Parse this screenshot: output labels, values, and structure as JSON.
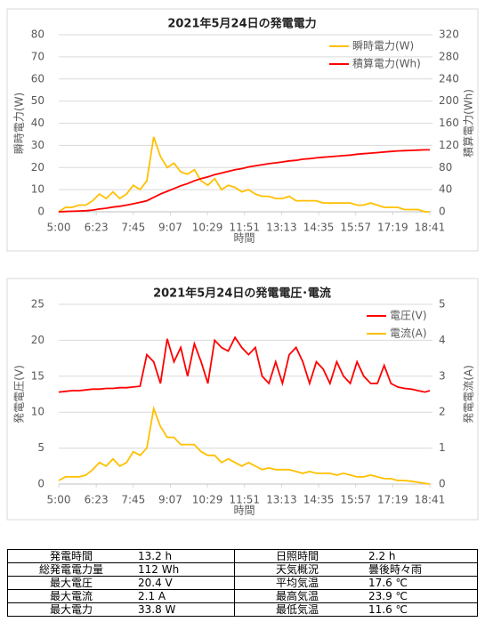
{
  "chart_data": [
    {
      "type": "line",
      "title": "2021年5月24日の発電電力",
      "x_label": "時間",
      "y_label": "瞬時電力(W)",
      "y2_label": "積算電力(Wh)",
      "x": [
        "5:00",
        "5:15",
        "5:30",
        "5:45",
        "6:00",
        "6:15",
        "6:30",
        "6:45",
        "7:00",
        "7:15",
        "7:30",
        "7:45",
        "8:00",
        "8:15",
        "8:30",
        "8:45",
        "9:00",
        "9:15",
        "9:30",
        "9:45",
        "10:00",
        "10:15",
        "10:30",
        "10:45",
        "11:00",
        "11:15",
        "11:30",
        "11:45",
        "12:00",
        "12:15",
        "12:30",
        "12:45",
        "13:00",
        "13:15",
        "13:30",
        "13:45",
        "14:00",
        "14:15",
        "14:30",
        "14:45",
        "15:00",
        "15:15",
        "15:30",
        "15:45",
        "16:00",
        "16:15",
        "16:30",
        "16:45",
        "17:00",
        "17:15",
        "17:30",
        "17:45",
        "18:00",
        "18:15",
        "18:30",
        "18:41"
      ],
      "xlim": [
        "5:00",
        "18:41"
      ],
      "xticks": [
        "5:00",
        "6:23",
        "7:45",
        "9:07",
        "10:29",
        "11:51",
        "13:13",
        "14:35",
        "15:57",
        "17:19",
        "18:41"
      ],
      "ylim": [
        0,
        80
      ],
      "yticks": [
        0,
        10,
        20,
        30,
        40,
        50,
        60,
        70,
        80
      ],
      "y2lim": [
        0,
        320
      ],
      "y2ticks": [
        0,
        40,
        80,
        120,
        160,
        200,
        240,
        280,
        320
      ],
      "grid": true,
      "legend": "top-right",
      "series": [
        {
          "name": "瞬時電力(W)",
          "color": "#ffc000",
          "axis": "y",
          "values": [
            0,
            2,
            2,
            3,
            3,
            5,
            8,
            6,
            9,
            6,
            8,
            12,
            10,
            14,
            33.8,
            25,
            20,
            22,
            18,
            17,
            19,
            14,
            12,
            15,
            10,
            12,
            11,
            9,
            10,
            8,
            7,
            7,
            6,
            6,
            7,
            5,
            5,
            5,
            5,
            4,
            4,
            4,
            4,
            4,
            3,
            3,
            4,
            3,
            2,
            2,
            2,
            1,
            1,
            1,
            0,
            0
          ]
        },
        {
          "name": "積算電力(Wh)",
          "color": "#ff0000",
          "axis": "y2",
          "values": [
            0,
            0.5,
            1,
            1.5,
            2,
            3,
            5,
            6.5,
            8.5,
            10,
            12,
            14.5,
            17,
            20,
            26,
            32,
            37,
            42,
            47,
            51,
            56,
            60,
            63,
            67,
            70,
            73,
            76,
            78,
            81,
            83,
            85,
            87,
            88.5,
            90,
            92,
            93,
            95,
            96,
            97.5,
            98.5,
            99.5,
            100.5,
            101.5,
            102.5,
            104,
            105,
            106,
            107,
            108,
            109,
            110,
            110.5,
            111,
            111.5,
            112,
            112
          ]
        }
      ]
    },
    {
      "type": "line",
      "title": "2021年5月24日の発電電圧･電流",
      "x_label": "時間",
      "y_label": "発電電圧(V)",
      "y2_label": "発電電流(A)",
      "x": [
        "5:00",
        "5:15",
        "5:30",
        "5:45",
        "6:00",
        "6:15",
        "6:30",
        "6:45",
        "7:00",
        "7:15",
        "7:30",
        "7:45",
        "8:00",
        "8:15",
        "8:30",
        "8:45",
        "9:00",
        "9:15",
        "9:30",
        "9:45",
        "10:00",
        "10:15",
        "10:30",
        "10:45",
        "11:00",
        "11:15",
        "11:30",
        "11:45",
        "12:00",
        "12:15",
        "12:30",
        "12:45",
        "13:00",
        "13:15",
        "13:30",
        "13:45",
        "14:00",
        "14:15",
        "14:30",
        "14:45",
        "15:00",
        "15:15",
        "15:30",
        "15:45",
        "16:00",
        "16:15",
        "16:30",
        "16:45",
        "17:00",
        "17:15",
        "17:30",
        "17:45",
        "18:00",
        "18:15",
        "18:30",
        "18:41"
      ],
      "xlim": [
        "5:00",
        "18:41"
      ],
      "xticks": [
        "5:00",
        "6:23",
        "7:45",
        "9:07",
        "10:29",
        "11:51",
        "13:13",
        "14:35",
        "15:57",
        "17:19",
        "18:41"
      ],
      "ylim": [
        0,
        25
      ],
      "yticks": [
        0,
        5,
        10,
        15,
        20,
        25
      ],
      "y2lim": [
        0,
        5
      ],
      "y2ticks": [
        0,
        1,
        2,
        3,
        4,
        5
      ],
      "grid": true,
      "legend": "top-right",
      "series": [
        {
          "name": "電圧(V)",
          "color": "#ff0000",
          "axis": "y",
          "values": [
            12.8,
            12.9,
            13.0,
            13.0,
            13.1,
            13.2,
            13.2,
            13.3,
            13.3,
            13.4,
            13.4,
            13.5,
            13.6,
            18,
            17,
            14,
            20.2,
            17,
            19,
            15,
            19.5,
            17,
            14,
            20,
            19,
            18.5,
            20.4,
            19,
            18,
            19,
            15,
            14,
            17,
            14,
            18,
            19,
            17,
            14,
            17,
            16,
            14,
            17,
            15,
            14,
            17,
            15,
            14,
            14,
            16.5,
            14,
            13.5,
            13.3,
            13.2,
            13.0,
            12.8,
            13.0
          ]
        },
        {
          "name": "電流(A)",
          "color": "#ffc000",
          "axis": "y2",
          "values": [
            0.1,
            0.2,
            0.2,
            0.2,
            0.25,
            0.4,
            0.6,
            0.5,
            0.7,
            0.5,
            0.6,
            0.9,
            0.8,
            1.0,
            2.1,
            1.6,
            1.3,
            1.3,
            1.1,
            1.1,
            1.1,
            0.9,
            0.8,
            0.8,
            0.6,
            0.7,
            0.6,
            0.5,
            0.6,
            0.5,
            0.4,
            0.45,
            0.4,
            0.4,
            0.4,
            0.35,
            0.3,
            0.35,
            0.3,
            0.3,
            0.3,
            0.25,
            0.3,
            0.25,
            0.2,
            0.2,
            0.25,
            0.2,
            0.15,
            0.15,
            0.1,
            0.1,
            0.08,
            0.05,
            0.02,
            0
          ]
        }
      ]
    }
  ],
  "table": {
    "rows": [
      [
        "発電時間",
        "13.2 h",
        "日照時間",
        "2.2 h"
      ],
      [
        "総発電電力量",
        "112 Wh",
        "天気概況",
        "曇後時々雨"
      ],
      [
        "最大電圧",
        "20.4 V",
        "平均気温",
        "17.6 ℃"
      ],
      [
        "最大電流",
        "2.1 A",
        "最高気温",
        "23.9 ℃"
      ],
      [
        "最大電力",
        "33.8 W",
        "最低気温",
        "11.6 ℃"
      ]
    ]
  }
}
